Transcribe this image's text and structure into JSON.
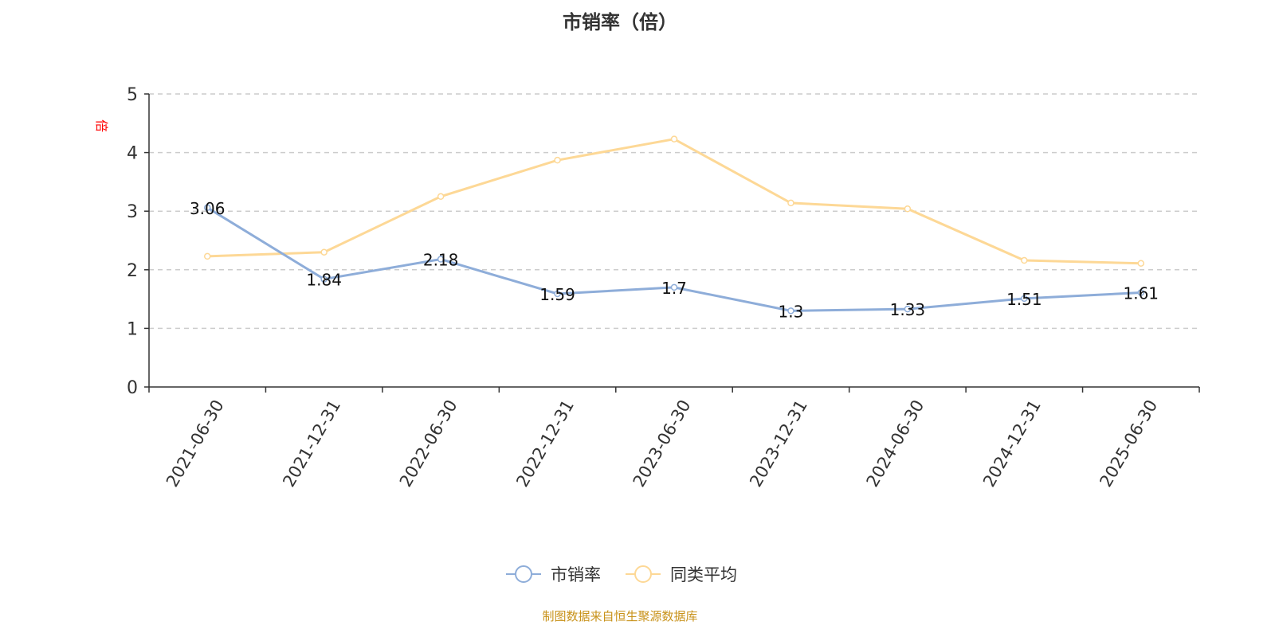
{
  "chart_data": {
    "type": "line",
    "title": "市销率（倍）",
    "ylabel": "倍",
    "ylim": [
      0,
      5
    ],
    "yticks": [
      0,
      1,
      2,
      3,
      4,
      5
    ],
    "grid": true,
    "legend_position": "bottom",
    "categories": [
      "2021-06-30",
      "2021-12-31",
      "2022-06-30",
      "2022-12-31",
      "2023-06-30",
      "2023-12-31",
      "2024-06-30",
      "2024-12-31",
      "2025-06-30"
    ],
    "series": [
      {
        "name": "市销率",
        "color": "#8eadd9",
        "labels": true,
        "values": [
          3.06,
          1.84,
          2.18,
          1.59,
          1.7,
          1.3,
          1.33,
          1.51,
          1.61
        ]
      },
      {
        "name": "同类平均",
        "color": "#fdd896",
        "labels": false,
        "values": [
          2.23,
          2.3,
          3.25,
          3.87,
          4.23,
          3.14,
          3.04,
          2.16,
          2.11
        ]
      }
    ]
  },
  "footer": "制图数据来自恒生聚源数据库",
  "colors": {
    "ylabel": "#ff0000",
    "footer": "#c8921a"
  }
}
